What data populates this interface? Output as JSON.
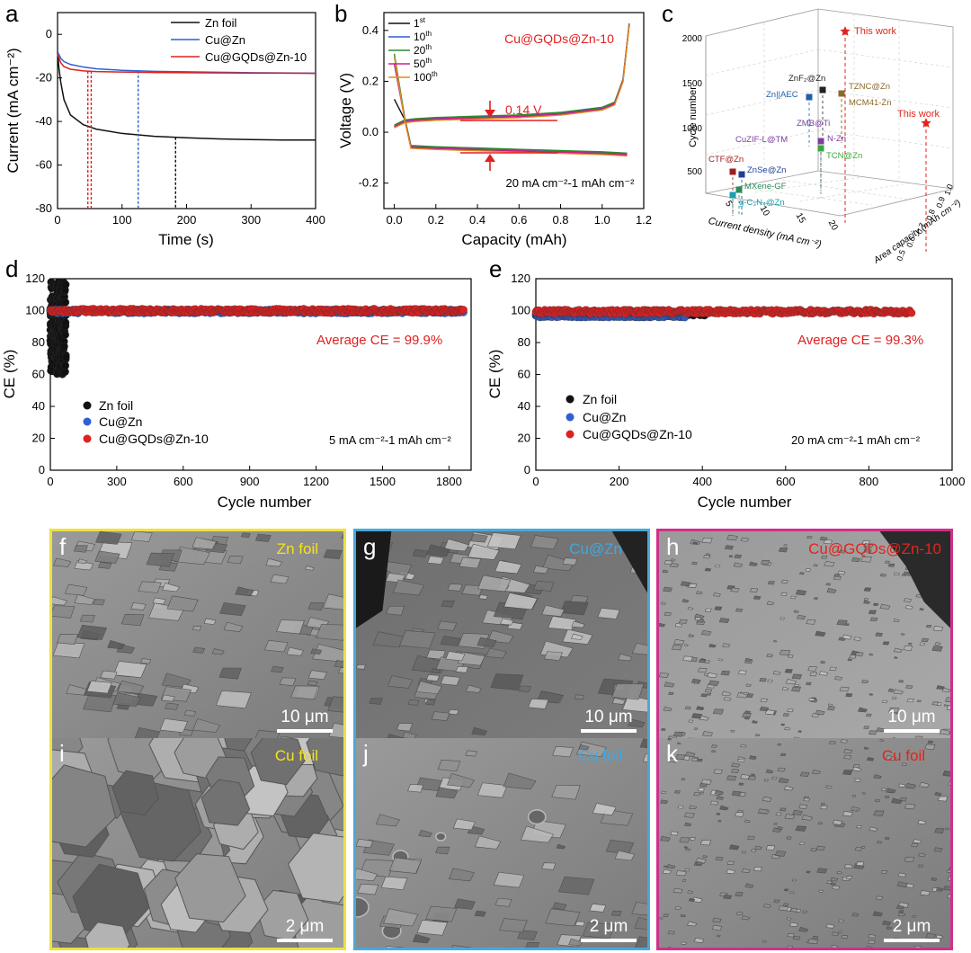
{
  "panels": {
    "a": {
      "letter": "a",
      "xlabel": "Time (s)",
      "ylabel": "Current (mA cm⁻²)",
      "xticks": [
        "0",
        "100",
        "200",
        "300",
        "400"
      ],
      "yticks": [
        "0",
        "-20",
        "-40",
        "-60",
        "-80"
      ],
      "legend": [
        "Zn foil",
        "Cu@Zn",
        "Cu@GQDs@Zn-10"
      ]
    },
    "b": {
      "letter": "b",
      "xlabel": "Capacity (mAh)",
      "ylabel": "Voltage (V)",
      "xticks": [
        "0.0",
        "0.2",
        "0.4",
        "0.6",
        "0.8",
        "1.0",
        "1.2"
      ],
      "yticks": [
        "0.4",
        "0.2",
        "0.0",
        "-0.2"
      ],
      "legend": [
        "1",
        "10",
        "20",
        "50",
        "100"
      ],
      "legend_sup": [
        "st",
        "th",
        "th",
        "th",
        "th"
      ],
      "sample_label": "Cu@GQDs@Zn-10",
      "overpotential": "0.14 V",
      "condition": "20 mA cm⁻²-1 mAh cm⁻²"
    },
    "c": {
      "letter": "c",
      "zlabel": "Cycle number",
      "xlabel": "Current density (mA cm⁻²)",
      "ylabel": "Area capacity (mAh cm⁻²)",
      "zticks": [
        "2000",
        "1500",
        "1000",
        "500"
      ],
      "xticks": [
        "5",
        "10",
        "15",
        "20"
      ],
      "yticks": [
        "0.5",
        "0.6",
        "0.7",
        "0.8",
        "0.9",
        "1.0"
      ],
      "points": [
        {
          "label": "This work",
          "color": "#e0251d"
        },
        {
          "label": "This work",
          "color": "#e0251d"
        },
        {
          "label": "ZnF₂@Zn",
          "color": "#222222"
        },
        {
          "label": "TZNC@Zn",
          "color": "#8a6a2a"
        },
        {
          "label": "MCM41-Zn",
          "color": "#8a6a2a"
        },
        {
          "label": "Zn||AEC",
          "color": "#1f5fa8"
        },
        {
          "label": "ZMB@Ti",
          "color": "#7a3fa0"
        },
        {
          "label": "CuZIF-L@TM",
          "color": "#7a3fa0"
        },
        {
          "label": "N-Zn",
          "color": "#7a3fa0"
        },
        {
          "label": "TCN@Zn",
          "color": "#3aa83a"
        },
        {
          "label": "CTF@Zn",
          "color": "#a01c1c"
        },
        {
          "label": "ZnSe@Zn",
          "color": "#1f3f9a"
        },
        {
          "label": "MXene-GF",
          "color": "#2a8a5a"
        },
        {
          "label": "g-C₃N₄@Zn",
          "color": "#1aa0b0"
        }
      ]
    },
    "d": {
      "letter": "d",
      "xlabel": "Cycle number",
      "ylabel": "CE (%)",
      "xticks": [
        "0",
        "300",
        "600",
        "900",
        "1200",
        "1500",
        "1800"
      ],
      "yticks": [
        "120",
        "100",
        "80",
        "60",
        "40",
        "20",
        "0"
      ],
      "legend": [
        "Zn foil",
        "Cu@Zn",
        "Cu@GQDs@Zn-10"
      ],
      "average": "Average CE = 99.9%",
      "condition": "5 mA cm⁻²-1 mAh cm⁻²"
    },
    "e": {
      "letter": "e",
      "xlabel": "Cycle number",
      "ylabel": "CE (%)",
      "xticks": [
        "0",
        "200",
        "400",
        "600",
        "800",
        "1000"
      ],
      "yticks": [
        "120",
        "100",
        "80",
        "60",
        "40",
        "20",
        "0"
      ],
      "legend": [
        "Zn foil",
        "Cu@Zn",
        "Cu@GQDs@Zn-10"
      ],
      "average": "Average CE = 99.3%",
      "condition": "20 mA cm⁻²-1 mAh cm⁻²"
    }
  },
  "sem": [
    {
      "letter": "f",
      "label": "Zn foil",
      "label_color": "#f5e21b",
      "scale": "10 μm",
      "border": "#f0e040"
    },
    {
      "letter": "g",
      "label": "Cu@Zn",
      "label_color": "#3fa8e0",
      "scale": "10 μm",
      "border": "#4aa8dc"
    },
    {
      "letter": "h",
      "label": "Cu@GQDs@Zn-10",
      "label_color": "#e0251d",
      "scale": "10 μm",
      "border": "#d0308a"
    },
    {
      "letter": "i",
      "label": "Cu foil",
      "label_color": "#f5e21b",
      "scale": "2 μm",
      "border": "#f0e040"
    },
    {
      "letter": "j",
      "label": "Cu foil",
      "label_color": "#3fa8e0",
      "scale": "2 μm",
      "border": "#4aa8dc"
    },
    {
      "letter": "k",
      "label": "Cu foil",
      "label_color": "#e0251d",
      "scale": "2 μm",
      "border": "#d0308a"
    }
  ],
  "colors": {
    "zn": "#111111",
    "cuzn": "#2f5fd0",
    "gqd": "#e02020",
    "red_text": "#e02020"
  },
  "chart_data": [
    {
      "id": "a",
      "type": "line",
      "xlabel": "Time (s)",
      "ylabel": "Current (mA cm⁻²)",
      "xlim": [
        0,
        400
      ],
      "ylim": [
        -80,
        10
      ],
      "series": [
        {
          "name": "Zn foil",
          "x": [
            0,
            2,
            5,
            10,
            20,
            40,
            60,
            100,
            150,
            200,
            250,
            300,
            350,
            400
          ],
          "y": [
            -8,
            -15,
            -22,
            -30,
            -37,
            -41.5,
            -43.5,
            -45.5,
            -46.8,
            -47.5,
            -48,
            -48.3,
            -48.5,
            -48.5
          ]
        },
        {
          "name": "Cu@Zn",
          "x": [
            0,
            5,
            10,
            20,
            40,
            60,
            100,
            150,
            200,
            250,
            300,
            350,
            400
          ],
          "y": [
            -8,
            -11,
            -12.5,
            -13.8,
            -15,
            -15.8,
            -16.5,
            -17,
            -17.2,
            -17.4,
            -17.6,
            -17.7,
            -17.8
          ]
        },
        {
          "name": "Cu@GQDs@Zn-10",
          "x": [
            0,
            5,
            10,
            20,
            40,
            60,
            100,
            150,
            200,
            250,
            300,
            350,
            400
          ],
          "y": [
            -9,
            -13,
            -14.8,
            -16,
            -16.8,
            -17.1,
            -17.3,
            -17.5,
            -17.6,
            -17.7,
            -17.8,
            -17.8,
            -17.9
          ]
        }
      ],
      "markers": [
        {
          "series": "Cu@GQDs@Zn-10",
          "x": 47
        },
        {
          "series": "Cu@Zn",
          "x": 125
        },
        {
          "series": "Zn foil",
          "x": 183
        }
      ]
    },
    {
      "id": "b",
      "type": "line",
      "xlabel": "Capacity (mAh)",
      "ylabel": "Voltage (V)",
      "xlim": [
        -0.05,
        1.2
      ],
      "ylim": [
        -0.3,
        0.47
      ],
      "series": [
        {
          "name": "1st",
          "color": "#111111"
        },
        {
          "name": "10th",
          "color": "#2f5fd0"
        },
        {
          "name": "20th",
          "color": "#2a8a2a"
        },
        {
          "name": "50th",
          "color": "#d0208a"
        },
        {
          "name": "100th",
          "color": "#e08a20"
        }
      ],
      "plating_curve": {
        "x": [
          0,
          0.05,
          0.08,
          0.2,
          0.4,
          0.6,
          0.8,
          1.0,
          1.12
        ],
        "y": [
          0.3,
          0.05,
          -0.06,
          -0.065,
          -0.07,
          -0.075,
          -0.08,
          -0.085,
          -0.09
        ]
      },
      "stripping_curve": {
        "x": [
          0,
          0.05,
          0.1,
          0.2,
          0.4,
          0.6,
          0.8,
          1.0,
          1.06,
          1.1,
          1.13
        ],
        "y": [
          0.02,
          0.04,
          0.045,
          0.05,
          0.055,
          0.06,
          0.07,
          0.09,
          0.11,
          0.2,
          0.42
        ]
      },
      "overpotential_V": 0.14,
      "overpotential_at_x": 0.45
    },
    {
      "id": "c",
      "type": "scatter",
      "zlabel": "Cycle number",
      "xlabel": "Current density (mA cm⁻²)",
      "ylabel": "Area capacity (mAh cm⁻²)",
      "zlim": [
        0,
        2000
      ]
    },
    {
      "id": "d",
      "type": "scatter",
      "xlabel": "Cycle number",
      "ylabel": "CE (%)",
      "xlim": [
        0,
        1900
      ],
      "ylim": [
        0,
        120
      ],
      "series": [
        {
          "name": "Zn foil",
          "x_range": [
            0,
            70
          ],
          "y_range": [
            60,
            118
          ]
        },
        {
          "name": "Cu@Zn",
          "x_range": [
            0,
            1870
          ],
          "y_mean": 99.5
        },
        {
          "name": "Cu@GQDs@Zn-10",
          "x_range": [
            0,
            1870
          ],
          "y_mean": 99.9
        }
      ]
    },
    {
      "id": "e",
      "type": "scatter",
      "xlabel": "Cycle number",
      "ylabel": "CE (%)",
      "xlim": [
        0,
        1000
      ],
      "ylim": [
        0,
        120
      ],
      "series": [
        {
          "name": "Zn foil",
          "x_range": [
            0,
            410
          ],
          "y_mean": 98
        },
        {
          "name": "Cu@Zn",
          "x_range": [
            0,
            360
          ],
          "y_mean": 97
        },
        {
          "name": "Cu@GQDs@Zn-10",
          "x_range": [
            0,
            905
          ],
          "y_mean": 99.3
        }
      ]
    }
  ]
}
